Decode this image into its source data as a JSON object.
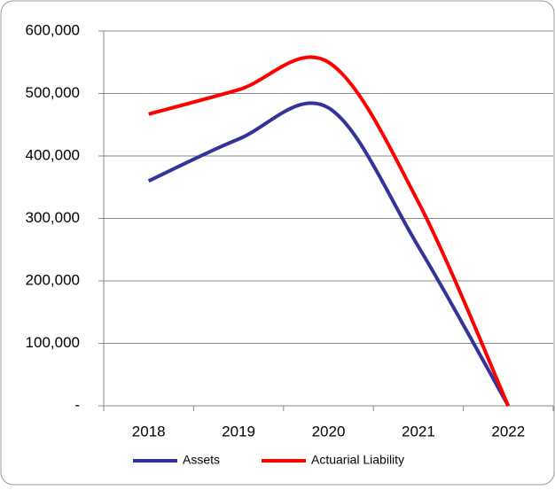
{
  "chart_data": {
    "type": "line",
    "categories": [
      "2018",
      "2019",
      "2020",
      "2021",
      "2022"
    ],
    "series": [
      {
        "name": "Assets",
        "color": "#333399",
        "values": [
          360000,
          427000,
          477000,
          255000,
          0
        ]
      },
      {
        "name": "Actuarial Liability",
        "color": "#ff0000",
        "values": [
          467000,
          506000,
          550000,
          326000,
          0
        ]
      }
    ],
    "ylim": [
      0,
      600000
    ],
    "yticks": [
      {
        "value": 0,
        "label": "-"
      },
      {
        "value": 100000,
        "label": "100,000"
      },
      {
        "value": 200000,
        "label": "200,000"
      },
      {
        "value": 300000,
        "label": "300,000"
      },
      {
        "value": 400000,
        "label": "400,000"
      },
      {
        "value": 500000,
        "label": "500,000"
      },
      {
        "value": 600000,
        "label": "600,000"
      }
    ],
    "grid": true,
    "smooth": true,
    "legend": "bottom"
  }
}
